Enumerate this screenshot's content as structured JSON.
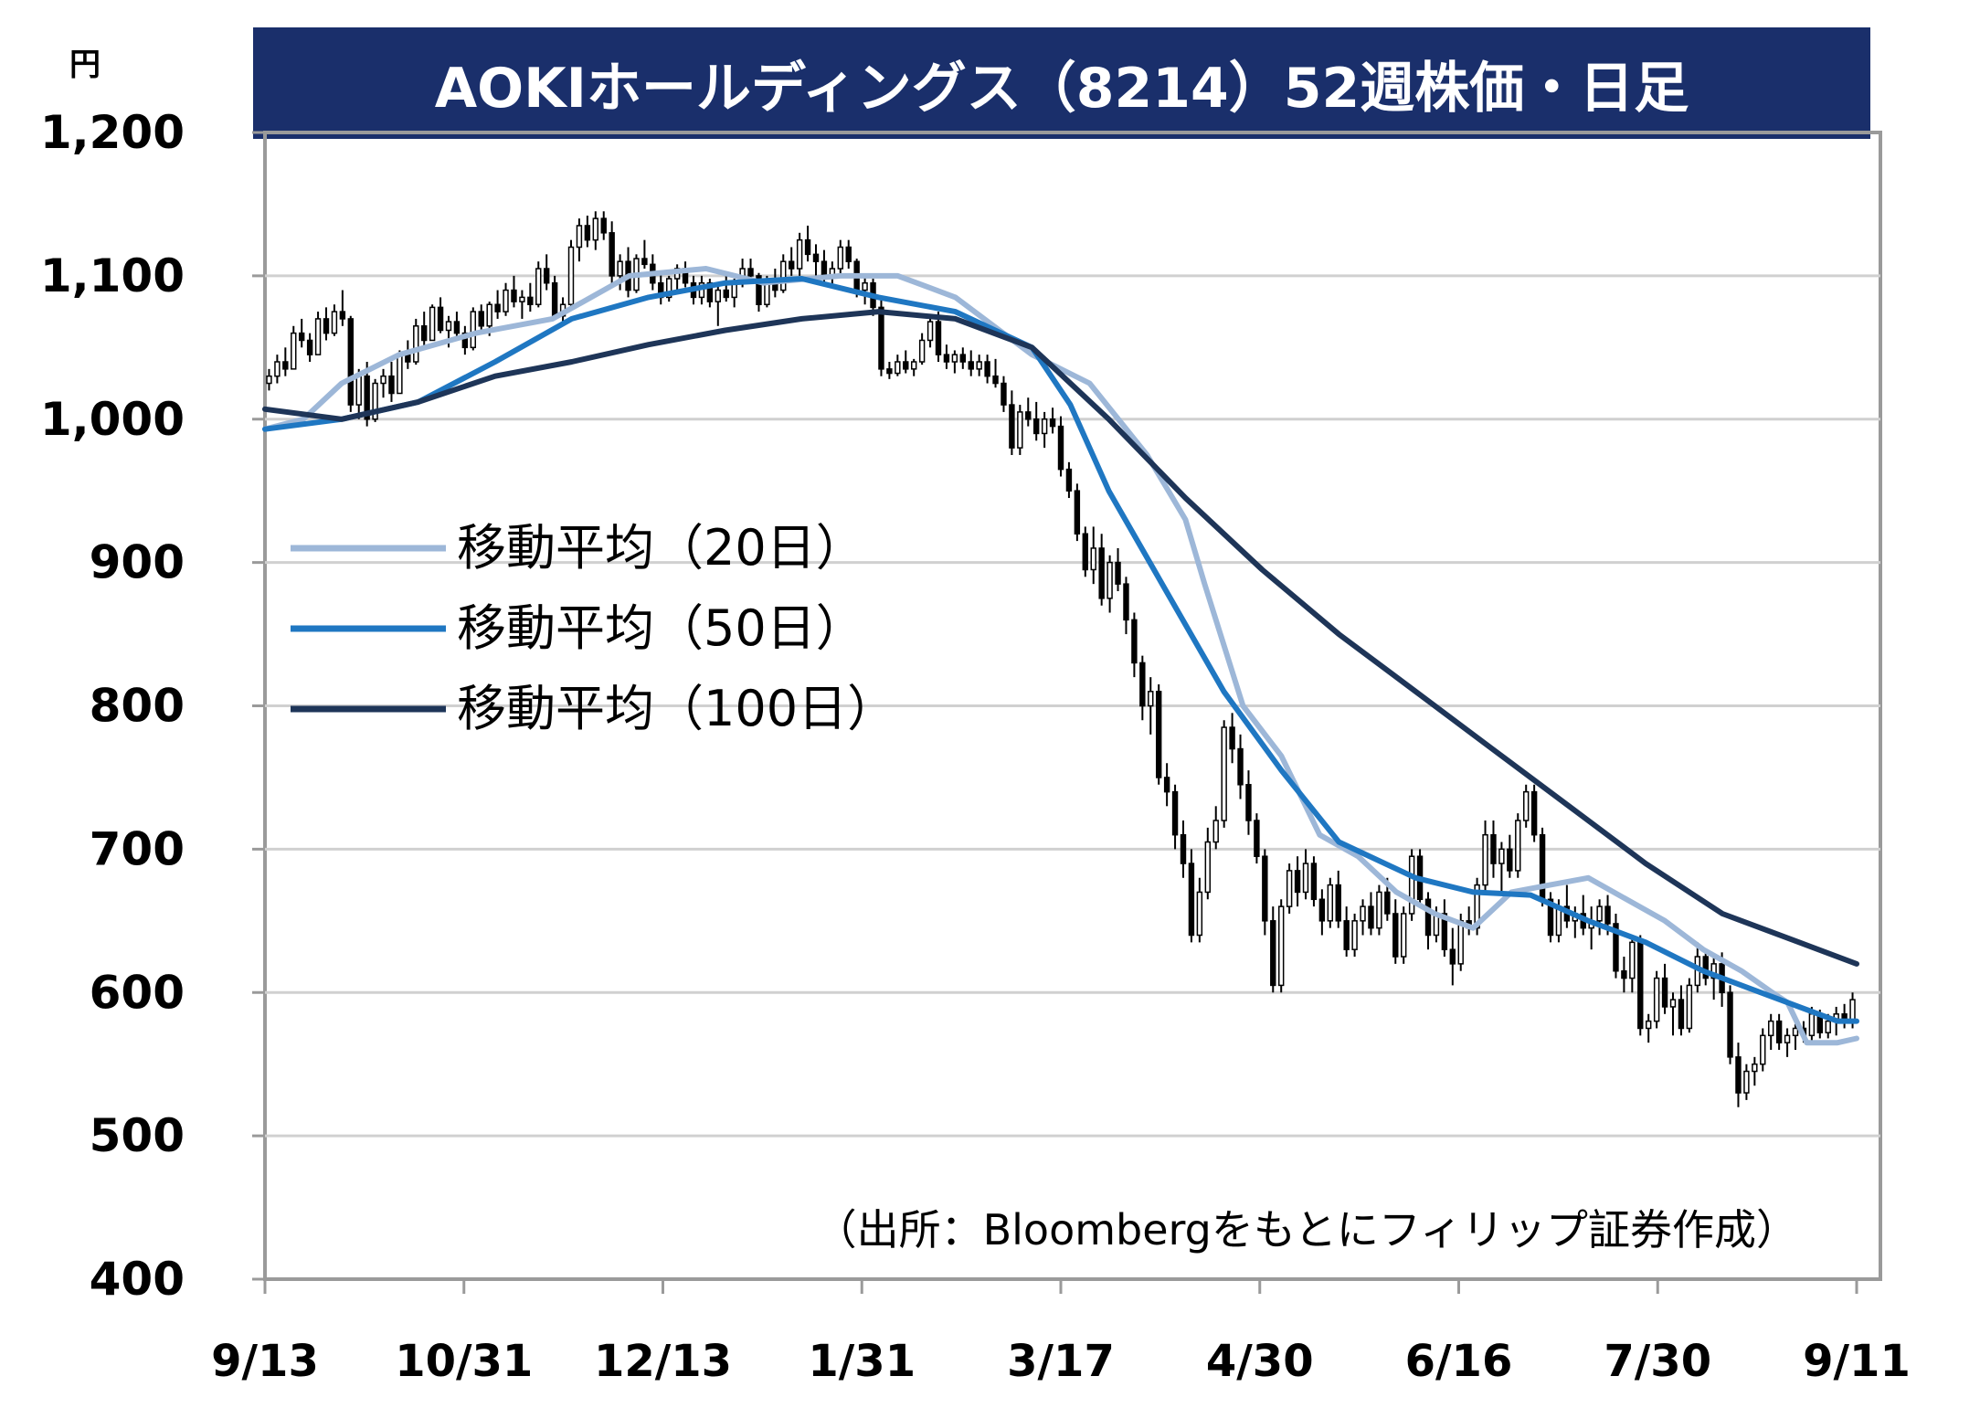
{
  "title": "AOKIホールディングス（8214）52週株価・日足",
  "source_note": "（出所：Bloombergをもとにフィリップ証券作成）",
  "colors": {
    "title_bg": "#1a2f6b",
    "candle": "#000000",
    "ma20": "#9db7d8",
    "ma50": "#1f77c2",
    "ma100": "#1e3558",
    "grid": "#d0d0d0",
    "frame": "#9a9a9a"
  },
  "chart_data": {
    "type": "candlestick",
    "y_unit": "円",
    "ylim": [
      400,
      1200
    ],
    "y_ticks": [
      "400",
      "500",
      "600",
      "700",
      "800",
      "900",
      "1,000",
      "1,100",
      "1,200"
    ],
    "y_tick_values": [
      400,
      500,
      600,
      700,
      800,
      900,
      1000,
      1100,
      1200
    ],
    "x_ticks": [
      "9/13",
      "10/31",
      "12/13",
      "1/31",
      "3/17",
      "4/30",
      "6/16",
      "7/30",
      "9/11"
    ],
    "grid": true,
    "legend_position": "left-middle",
    "series": [
      {
        "name": "移動平均（20日）",
        "color": "#9db7d8",
        "x": [
          0,
          10,
          20,
          35,
          55,
          75,
          95,
          115,
          130,
          150,
          165,
          180,
          200,
          215,
          230,
          240,
          245,
          255,
          265,
          275,
          285,
          295,
          305,
          315,
          325,
          335,
          345,
          355,
          365,
          375,
          385,
          393,
          397,
          402,
          410,
          415
        ],
        "values": [
          993,
          1000,
          1025,
          1045,
          1060,
          1070,
          1100,
          1105,
          1095,
          1100,
          1100,
          1085,
          1045,
          1025,
          975,
          930,
          885,
          800,
          765,
          710,
          695,
          670,
          655,
          645,
          670,
          675,
          680,
          665,
          650,
          630,
          615,
          600,
          593,
          565,
          565,
          568
        ]
      },
      {
        "name": "移動平均（50日）",
        "color": "#1f77c2",
        "x": [
          0,
          20,
          40,
          60,
          80,
          100,
          120,
          140,
          160,
          180,
          200,
          210,
          220,
          235,
          250,
          265,
          280,
          300,
          315,
          330,
          345,
          360,
          375,
          390,
          400,
          410,
          415
        ],
        "values": [
          993,
          1000,
          1012,
          1040,
          1070,
          1085,
          1095,
          1098,
          1085,
          1075,
          1050,
          1010,
          950,
          880,
          810,
          755,
          705,
          680,
          670,
          668,
          650,
          635,
          615,
          600,
          590,
          580,
          580
        ]
      },
      {
        "name": "移動平均（100日）",
        "color": "#1e3558",
        "x": [
          0,
          20,
          40,
          60,
          80,
          100,
          120,
          140,
          160,
          180,
          200,
          220,
          240,
          260,
          280,
          300,
          320,
          340,
          360,
          380,
          400,
          415
        ],
        "values": [
          1007,
          1000,
          1012,
          1030,
          1040,
          1052,
          1062,
          1070,
          1075,
          1070,
          1050,
          1000,
          945,
          895,
          850,
          810,
          770,
          730,
          690,
          655,
          635,
          620
        ]
      }
    ],
    "ohlc": [
      [
        1025,
        1035,
        1020,
        1030
      ],
      [
        1030,
        1045,
        1025,
        1040
      ],
      [
        1040,
        1050,
        1030,
        1035
      ],
      [
        1035,
        1065,
        1035,
        1060
      ],
      [
        1060,
        1070,
        1050,
        1055
      ],
      [
        1055,
        1060,
        1040,
        1045
      ],
      [
        1045,
        1075,
        1045,
        1070
      ],
      [
        1070,
        1078,
        1055,
        1060
      ],
      [
        1060,
        1080,
        1058,
        1075
      ],
      [
        1075,
        1090,
        1065,
        1070
      ],
      [
        1070,
        1072,
        1005,
        1010
      ],
      [
        1010,
        1035,
        1000,
        1030
      ],
      [
        1030,
        1040,
        995,
        1000
      ],
      [
        1000,
        1028,
        998,
        1025
      ],
      [
        1025,
        1035,
        1015,
        1030
      ],
      [
        1030,
        1040,
        1012,
        1018
      ],
      [
        1018,
        1048,
        1018,
        1045
      ],
      [
        1045,
        1055,
        1035,
        1040
      ],
      [
        1040,
        1070,
        1038,
        1065
      ],
      [
        1065,
        1075,
        1050,
        1055
      ],
      [
        1055,
        1080,
        1055,
        1078
      ],
      [
        1078,
        1085,
        1060,
        1062
      ],
      [
        1062,
        1072,
        1050,
        1068
      ],
      [
        1068,
        1075,
        1055,
        1060
      ],
      [
        1060,
        1065,
        1045,
        1050
      ],
      [
        1050,
        1078,
        1048,
        1075
      ],
      [
        1075,
        1080,
        1060,
        1065
      ],
      [
        1065,
        1082,
        1058,
        1080
      ],
      [
        1080,
        1090,
        1070,
        1075
      ],
      [
        1075,
        1095,
        1072,
        1090
      ],
      [
        1090,
        1100,
        1078,
        1082
      ],
      [
        1082,
        1090,
        1070,
        1085
      ],
      [
        1085,
        1095,
        1075,
        1080
      ],
      [
        1080,
        1110,
        1078,
        1105
      ],
      [
        1105,
        1115,
        1090,
        1095
      ],
      [
        1095,
        1100,
        1070,
        1072
      ],
      [
        1072,
        1085,
        1068,
        1080
      ],
      [
        1080,
        1125,
        1078,
        1120
      ],
      [
        1120,
        1140,
        1110,
        1135
      ],
      [
        1135,
        1142,
        1120,
        1125
      ],
      [
        1125,
        1145,
        1118,
        1140
      ],
      [
        1140,
        1145,
        1125,
        1130
      ],
      [
        1130,
        1138,
        1095,
        1100
      ],
      [
        1100,
        1115,
        1090,
        1110
      ],
      [
        1110,
        1120,
        1085,
        1090
      ],
      [
        1090,
        1115,
        1088,
        1112
      ],
      [
        1112,
        1125,
        1105,
        1108
      ],
      [
        1108,
        1115,
        1090,
        1095
      ],
      [
        1095,
        1102,
        1080,
        1085
      ],
      [
        1085,
        1100,
        1082,
        1098
      ],
      [
        1098,
        1108,
        1090,
        1105
      ],
      [
        1105,
        1110,
        1092,
        1095
      ],
      [
        1095,
        1100,
        1080,
        1085
      ],
      [
        1085,
        1100,
        1080,
        1095
      ],
      [
        1095,
        1098,
        1078,
        1082
      ],
      [
        1082,
        1095,
        1065,
        1090
      ],
      [
        1090,
        1100,
        1082,
        1085
      ],
      [
        1085,
        1098,
        1078,
        1095
      ],
      [
        1095,
        1112,
        1092,
        1105
      ],
      [
        1105,
        1112,
        1095,
        1100
      ],
      [
        1100,
        1102,
        1075,
        1080
      ],
      [
        1080,
        1100,
        1078,
        1095
      ],
      [
        1095,
        1105,
        1085,
        1090
      ],
      [
        1090,
        1115,
        1088,
        1110
      ],
      [
        1110,
        1120,
        1100,
        1105
      ],
      [
        1105,
        1130,
        1100,
        1125
      ],
      [
        1125,
        1135,
        1110,
        1115
      ],
      [
        1115,
        1122,
        1100,
        1110
      ],
      [
        1110,
        1118,
        1095,
        1100
      ],
      [
        1100,
        1110,
        1092,
        1105
      ],
      [
        1105,
        1125,
        1100,
        1120
      ],
      [
        1120,
        1125,
        1105,
        1110
      ],
      [
        1110,
        1112,
        1085,
        1090
      ],
      [
        1090,
        1100,
        1080,
        1095
      ],
      [
        1095,
        1098,
        1072,
        1078
      ],
      [
        1078,
        1085,
        1030,
        1035
      ],
      [
        1035,
        1040,
        1028,
        1032
      ],
      [
        1032,
        1045,
        1030,
        1040
      ],
      [
        1040,
        1048,
        1032,
        1035
      ],
      [
        1035,
        1042,
        1030,
        1040
      ],
      [
        1040,
        1060,
        1038,
        1055
      ],
      [
        1055,
        1072,
        1050,
        1068
      ],
      [
        1068,
        1075,
        1040,
        1045
      ],
      [
        1045,
        1052,
        1035,
        1040
      ],
      [
        1040,
        1048,
        1032,
        1045
      ],
      [
        1045,
        1050,
        1035,
        1040
      ],
      [
        1040,
        1048,
        1030,
        1035
      ],
      [
        1035,
        1045,
        1030,
        1040
      ],
      [
        1040,
        1045,
        1025,
        1030
      ],
      [
        1030,
        1042,
        1022,
        1025
      ],
      [
        1025,
        1030,
        1005,
        1010
      ],
      [
        1010,
        1020,
        975,
        980
      ],
      [
        980,
        1010,
        975,
        1005
      ],
      [
        1005,
        1015,
        995,
        1000
      ],
      [
        1000,
        1012,
        985,
        990
      ],
      [
        990,
        1005,
        980,
        1000
      ],
      [
        1000,
        1008,
        990,
        995
      ],
      [
        995,
        1002,
        960,
        965
      ],
      [
        965,
        970,
        945,
        950
      ],
      [
        950,
        955,
        915,
        920
      ],
      [
        920,
        925,
        890,
        895
      ],
      [
        895,
        925,
        885,
        910
      ],
      [
        910,
        920,
        870,
        875
      ],
      [
        875,
        905,
        865,
        900
      ],
      [
        900,
        910,
        880,
        885
      ],
      [
        885,
        890,
        850,
        860
      ],
      [
        860,
        865,
        820,
        830
      ],
      [
        830,
        835,
        790,
        800
      ],
      [
        800,
        820,
        780,
        810
      ],
      [
        810,
        815,
        745,
        750
      ],
      [
        750,
        760,
        730,
        740
      ],
      [
        740,
        745,
        700,
        710
      ],
      [
        710,
        720,
        680,
        690
      ],
      [
        690,
        700,
        635,
        640
      ],
      [
        640,
        680,
        635,
        670
      ],
      [
        670,
        715,
        665,
        705
      ],
      [
        705,
        730,
        700,
        720
      ],
      [
        720,
        790,
        715,
        785
      ],
      [
        785,
        795,
        760,
        770
      ],
      [
        770,
        780,
        735,
        745
      ],
      [
        745,
        755,
        710,
        720
      ],
      [
        720,
        725,
        690,
        695
      ],
      [
        695,
        700,
        640,
        650
      ],
      [
        650,
        660,
        600,
        605
      ],
      [
        605,
        665,
        600,
        660
      ],
      [
        660,
        690,
        655,
        685
      ],
      [
        685,
        695,
        660,
        670
      ],
      [
        670,
        700,
        665,
        690
      ],
      [
        690,
        695,
        660,
        665
      ],
      [
        665,
        672,
        640,
        650
      ],
      [
        650,
        680,
        645,
        675
      ],
      [
        675,
        685,
        645,
        650
      ],
      [
        650,
        660,
        625,
        630
      ],
      [
        630,
        655,
        625,
        650
      ],
      [
        650,
        665,
        640,
        660
      ],
      [
        660,
        670,
        640,
        645
      ],
      [
        645,
        675,
        640,
        670
      ],
      [
        670,
        680,
        650,
        655
      ],
      [
        655,
        665,
        620,
        625
      ],
      [
        625,
        660,
        620,
        655
      ],
      [
        655,
        700,
        650,
        695
      ],
      [
        695,
        700,
        660,
        665
      ],
      [
        665,
        670,
        630,
        640
      ],
      [
        640,
        660,
        635,
        655
      ],
      [
        655,
        665,
        625,
        630
      ],
      [
        630,
        645,
        605,
        620
      ],
      [
        620,
        655,
        615,
        650
      ],
      [
        650,
        660,
        640,
        645
      ],
      [
        645,
        680,
        640,
        675
      ],
      [
        675,
        720,
        670,
        710
      ],
      [
        710,
        720,
        680,
        690
      ],
      [
        690,
        705,
        670,
        700
      ],
      [
        700,
        710,
        680,
        685
      ],
      [
        685,
        725,
        680,
        720
      ],
      [
        720,
        745,
        715,
        740
      ],
      [
        740,
        745,
        705,
        710
      ],
      [
        710,
        715,
        660,
        665
      ],
      [
        665,
        670,
        635,
        640
      ],
      [
        640,
        665,
        635,
        660
      ],
      [
        660,
        675,
        645,
        650
      ],
      [
        650,
        660,
        638,
        655
      ],
      [
        655,
        668,
        640,
        645
      ],
      [
        645,
        660,
        630,
        650
      ],
      [
        650,
        665,
        640,
        660
      ],
      [
        660,
        668,
        640,
        648
      ],
      [
        648,
        655,
        610,
        615
      ],
      [
        615,
        625,
        600,
        610
      ],
      [
        610,
        640,
        600,
        635
      ],
      [
        635,
        640,
        570,
        575
      ],
      [
        575,
        585,
        565,
        580
      ],
      [
        580,
        615,
        575,
        610
      ],
      [
        610,
        620,
        585,
        590
      ],
      [
        590,
        600,
        570,
        595
      ],
      [
        595,
        605,
        570,
        575
      ],
      [
        575,
        610,
        572,
        605
      ],
      [
        605,
        635,
        600,
        625
      ],
      [
        625,
        630,
        605,
        610
      ],
      [
        610,
        625,
        595,
        620
      ],
      [
        620,
        628,
        590,
        600
      ],
      [
        600,
        605,
        550,
        555
      ],
      [
        555,
        565,
        520,
        530
      ],
      [
        530,
        550,
        525,
        545
      ],
      [
        545,
        555,
        535,
        550
      ],
      [
        550,
        575,
        545,
        570
      ],
      [
        570,
        585,
        560,
        580
      ],
      [
        580,
        585,
        560,
        565
      ],
      [
        565,
        575,
        555,
        570
      ],
      [
        570,
        578,
        560,
        575
      ],
      [
        575,
        580,
        565,
        570
      ],
      [
        570,
        590,
        565,
        585
      ],
      [
        585,
        588,
        568,
        572
      ],
      [
        572,
        585,
        568,
        580
      ],
      [
        580,
        590,
        570,
        585
      ],
      [
        585,
        592,
        575,
        580
      ],
      [
        580,
        600,
        575,
        595
      ]
    ]
  }
}
